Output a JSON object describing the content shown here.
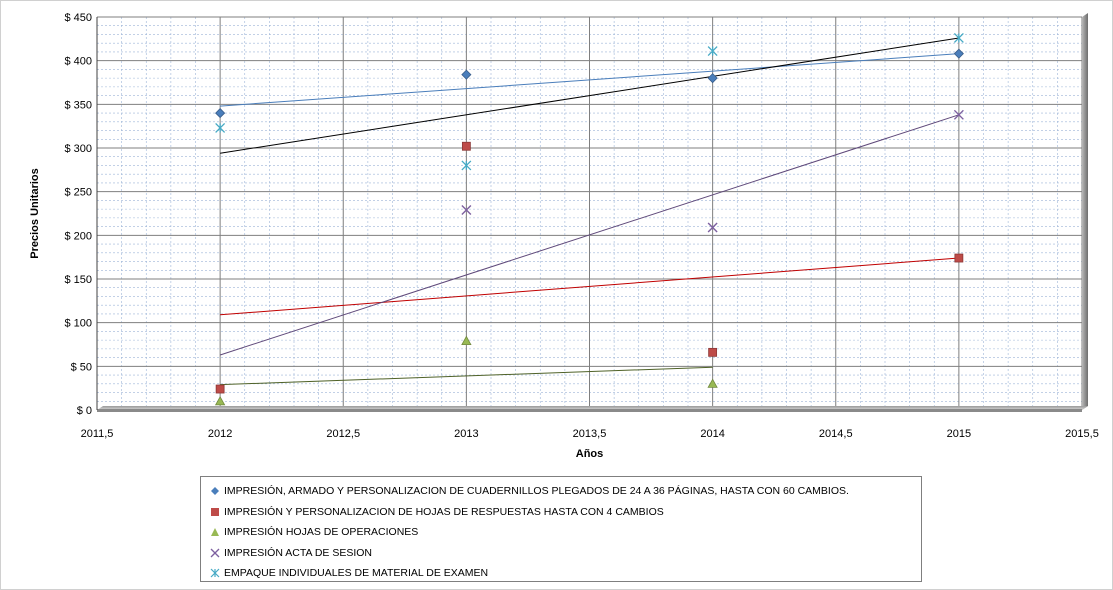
{
  "chart_data": {
    "type": "scatter",
    "title": "",
    "xlabel": "Años",
    "ylabel": "Precios Unitarios",
    "xlim": [
      2011.5,
      2015.5
    ],
    "ylim": [
      0,
      450
    ],
    "x_ticks": [
      "2011,5",
      "2012",
      "2012,5",
      "2013",
      "2013,5",
      "2014",
      "2014,5",
      "2015",
      "2015,5"
    ],
    "y_ticks": [
      "$ 0",
      "$ 50",
      "$ 100",
      "$ 150",
      "$ 200",
      "$ 250",
      "$ 300",
      "$ 350",
      "$ 400",
      "$ 450"
    ],
    "grid": true,
    "legend_position": "bottom",
    "series": [
      {
        "name": "IMPRESIÓN, ARMADO Y PERSONALIZACION DE CUADERNILLOS PLEGADOS DE 24 A 36 PÁGINAS, HASTA CON 60 CAMBIOS.",
        "marker": "diamond",
        "color": "#4a7ebb",
        "x": [
          2012,
          2013,
          2014,
          2015
        ],
        "y": [
          340,
          384,
          380,
          408
        ],
        "trendline": {
          "x": [
            2012,
            2015
          ],
          "y": [
            348,
            408
          ],
          "color": "#4a7ebb"
        }
      },
      {
        "name": "IMPRESIÓN Y PERSONALIZACION DE HOJAS DE RESPUESTAS  HASTA CON 4 CAMBIOS",
        "marker": "square",
        "color": "#be4b48",
        "x": [
          2012,
          2013,
          2014,
          2015
        ],
        "y": [
          24,
          302,
          66,
          174
        ],
        "trendline": {
          "x": [
            2012,
            2015
          ],
          "y": [
            109,
            174
          ],
          "color": "#c00000"
        }
      },
      {
        "name": "IMPRESIÓN HOJAS DE OPERACIONES",
        "marker": "triangle",
        "color": "#98b954",
        "x": [
          2012,
          2013,
          2014
        ],
        "y": [
          10,
          79,
          30
        ],
        "trendline": {
          "x": [
            2012,
            2014
          ],
          "y": [
            29,
            49
          ],
          "color": "#4f6228"
        }
      },
      {
        "name": "IMPRESIÓN ACTA DE SESION",
        "marker": "x",
        "color": "#7d60a0",
        "x": [
          2013,
          2014,
          2015
        ],
        "y": [
          229,
          209,
          338
        ],
        "trendline": {
          "x": [
            2012,
            2015
          ],
          "y": [
            63,
            338
          ],
          "color": "#5f497a"
        }
      },
      {
        "name": "EMPAQUE INDIVIDUALES DE MATERIAL DE EXAMEN",
        "marker": "star",
        "color": "#46aac5",
        "x": [
          2012,
          2013,
          2014,
          2015
        ],
        "y": [
          323,
          280,
          411,
          426
        ],
        "trendline": {
          "x": [
            2012,
            2015
          ],
          "y": [
            294,
            426
          ],
          "color": "#000000"
        }
      }
    ]
  }
}
